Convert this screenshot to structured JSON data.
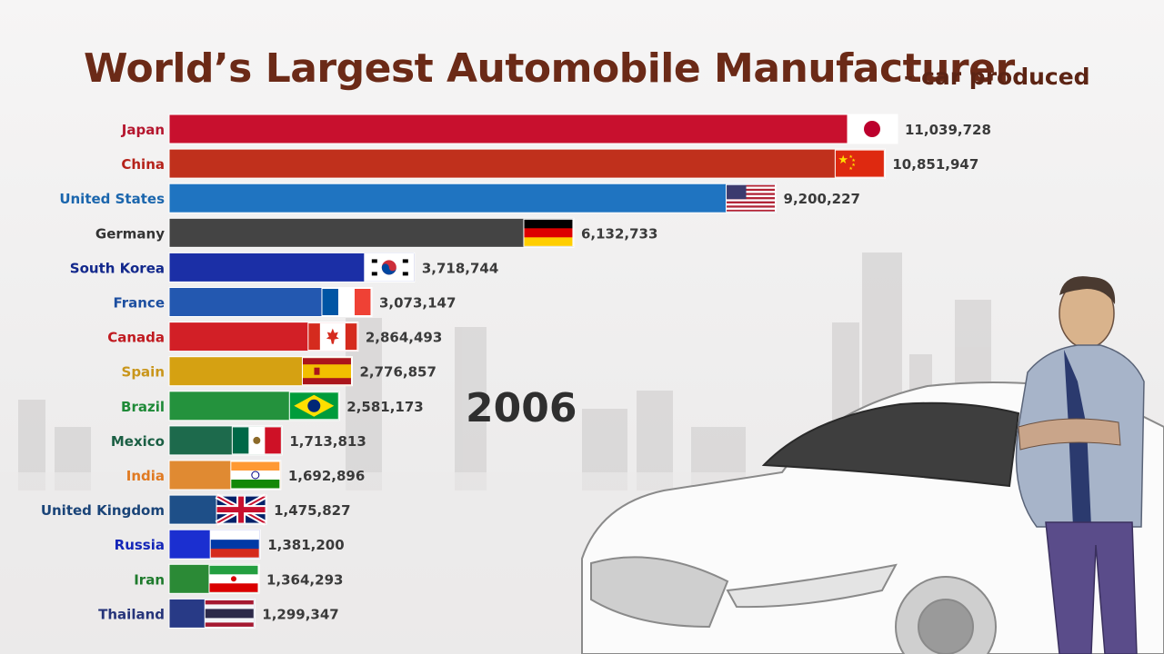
{
  "header": {
    "title": "World’s Largest Automobile Manufacturer",
    "subtitle": "- car produced"
  },
  "year_label": "2006",
  "chart_data": {
    "type": "bar",
    "orientation": "horizontal",
    "title": "World’s Largest Automobile Manufacturer",
    "subtitle": "- car produced",
    "xlabel": "",
    "ylabel": "",
    "grid": false,
    "legend": "none",
    "xlim": [
      0,
      11039728
    ],
    "categories": [
      "Japan",
      "China",
      "United States",
      "Germany",
      "South Korea",
      "France",
      "Canada",
      "Spain",
      "Brazil",
      "Mexico",
      "India",
      "United Kingdom",
      "Russia",
      "Iran",
      "Thailand"
    ],
    "values": [
      11039728,
      10851947,
      9200227,
      6132733,
      3718744,
      3073147,
      2864493,
      2776857,
      2581173,
      1713813,
      1692896,
      1475827,
      1381200,
      1364293,
      1299347
    ],
    "value_labels": [
      "11,039,728",
      "10,851,947",
      "9,200,227",
      "6,132,733",
      "3,718,744",
      "3,073,147",
      "2,864,493",
      "2,776,857",
      "2,581,173",
      "1,713,813",
      "1,692,896",
      "1,475,827",
      "1,381,200",
      "1,364,293",
      "1,299,347"
    ],
    "bar_colors": [
      "#c8102e",
      "#c0301c",
      "#1f74c1",
      "#444444",
      "#1b2fa6",
      "#2358b0",
      "#d21f26",
      "#d5a112",
      "#24923d",
      "#1d6a4c",
      "#e08a32",
      "#1e4f88",
      "#1b2fd0",
      "#2b8a36",
      "#283a86"
    ],
    "label_colors": [
      "#b5162e",
      "#b5221a",
      "#1b66ad",
      "#333333",
      "#12288c",
      "#1c4ea0",
      "#c01a20",
      "#c9961b",
      "#1f8a38",
      "#1b5f44",
      "#e07a22",
      "#1a4478",
      "#1426b8",
      "#1e7a2c",
      "#26347a"
    ],
    "flags": [
      "japan-flag",
      "china-flag",
      "usa-flag",
      "germany-flag",
      "south-korea-flag",
      "france-flag",
      "canada-flag",
      "spain-flag",
      "brazil-flag",
      "mexico-flag",
      "india-flag",
      "uk-flag",
      "russia-flag",
      "iran-flag",
      "thailand-flag"
    ]
  }
}
